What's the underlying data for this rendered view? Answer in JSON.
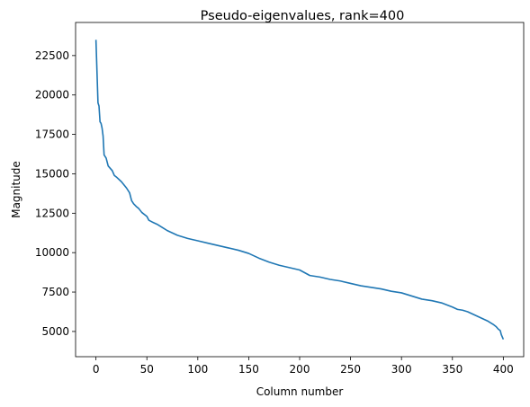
{
  "chart_data": {
    "type": "line",
    "title": "Pseudo-eigenvalues, rank=400",
    "xlabel": "Column number",
    "ylabel": "Magnitude",
    "xlim": [
      -20,
      420
    ],
    "ylim": [
      3400,
      24600
    ],
    "xticks": [
      0,
      50,
      100,
      150,
      200,
      250,
      300,
      350,
      400
    ],
    "yticks": [
      5000,
      7500,
      10000,
      12500,
      15000,
      17500,
      20000,
      22500
    ],
    "grid": false,
    "color": "#1f77b4",
    "series": [
      {
        "x": [
          0,
          1,
          2,
          3,
          4,
          5,
          6,
          7,
          8,
          10,
          12,
          14,
          16,
          18,
          20,
          25,
          30,
          33,
          35,
          37,
          40,
          42,
          45,
          50,
          52,
          55,
          60,
          70,
          80,
          90,
          100,
          110,
          120,
          130,
          140,
          150,
          160,
          170,
          180,
          190,
          200,
          210,
          220,
          230,
          240,
          250,
          260,
          270,
          280,
          290,
          300,
          310,
          320,
          330,
          340,
          350,
          355,
          360,
          365,
          370,
          375,
          380,
          385,
          390,
          393,
          395,
          397,
          398,
          399,
          400
        ],
        "y": [
          23500,
          21500,
          19500,
          19300,
          18300,
          18200,
          17900,
          17400,
          16200,
          16000,
          15500,
          15350,
          15200,
          14900,
          14800,
          14500,
          14100,
          13800,
          13300,
          13100,
          12900,
          12800,
          12550,
          12300,
          12050,
          11950,
          11800,
          11400,
          11100,
          10900,
          10750,
          10600,
          10450,
          10300,
          10150,
          9950,
          9650,
          9400,
          9200,
          9050,
          8900,
          8550,
          8450,
          8300,
          8200,
          8050,
          7900,
          7800,
          7700,
          7550,
          7450,
          7250,
          7050,
          6950,
          6800,
          6550,
          6400,
          6350,
          6250,
          6100,
          5950,
          5800,
          5650,
          5450,
          5300,
          5150,
          5050,
          4800,
          4650,
          4500
        ]
      }
    ]
  }
}
